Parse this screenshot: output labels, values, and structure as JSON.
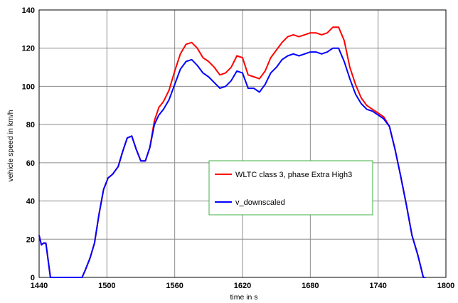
{
  "chart_data": {
    "type": "line",
    "title": "",
    "xlabel": "time in s",
    "ylabel": "vehicle speed in km/h",
    "xlim": [
      1440,
      1800
    ],
    "ylim": [
      0,
      140
    ],
    "xticks": [
      1440,
      1500,
      1560,
      1620,
      1680,
      1740,
      1800
    ],
    "yticks": [
      0,
      20,
      40,
      60,
      80,
      100,
      120,
      140
    ],
    "grid": true,
    "legend_position": "center-right",
    "series": [
      {
        "name": "WLTC class 3, phase Extra High3",
        "color": "#ff0000",
        "points": [
          [
            1440,
            22
          ],
          [
            1442,
            17
          ],
          [
            1444,
            18
          ],
          [
            1446,
            18
          ],
          [
            1448,
            9
          ],
          [
            1450,
            0
          ],
          [
            1460,
            0
          ],
          [
            1470,
            0
          ],
          [
            1478,
            0
          ],
          [
            1481,
            4
          ],
          [
            1485,
            10
          ],
          [
            1489,
            18
          ],
          [
            1493,
            33
          ],
          [
            1497,
            46
          ],
          [
            1501,
            52
          ],
          [
            1505,
            54
          ],
          [
            1510,
            58
          ],
          [
            1514,
            66
          ],
          [
            1518,
            73
          ],
          [
            1522,
            74
          ],
          [
            1526,
            67
          ],
          [
            1530,
            61
          ],
          [
            1534,
            61
          ],
          [
            1538,
            68
          ],
          [
            1542,
            82
          ],
          [
            1546,
            89
          ],
          [
            1550,
            92
          ],
          [
            1555,
            98
          ],
          [
            1560,
            108
          ],
          [
            1565,
            117
          ],
          [
            1570,
            122
          ],
          [
            1575,
            123
          ],
          [
            1580,
            120
          ],
          [
            1585,
            115
          ],
          [
            1590,
            113
          ],
          [
            1595,
            110
          ],
          [
            1600,
            106
          ],
          [
            1605,
            107
          ],
          [
            1610,
            110
          ],
          [
            1615,
            116
          ],
          [
            1620,
            115
          ],
          [
            1625,
            106
          ],
          [
            1630,
            105
          ],
          [
            1635,
            104
          ],
          [
            1640,
            108
          ],
          [
            1645,
            115
          ],
          [
            1650,
            119
          ],
          [
            1655,
            123
          ],
          [
            1660,
            126
          ],
          [
            1665,
            127
          ],
          [
            1670,
            126
          ],
          [
            1675,
            127
          ],
          [
            1680,
            128
          ],
          [
            1685,
            128
          ],
          [
            1690,
            127
          ],
          [
            1695,
            128
          ],
          [
            1700,
            131
          ],
          [
            1705,
            131
          ],
          [
            1710,
            124
          ],
          [
            1715,
            110
          ],
          [
            1720,
            101
          ],
          [
            1725,
            94
          ],
          [
            1730,
            90
          ],
          [
            1735,
            88
          ],
          [
            1740,
            86
          ],
          [
            1745,
            84
          ],
          [
            1750,
            79
          ],
          [
            1755,
            67
          ],
          [
            1760,
            53
          ],
          [
            1765,
            38
          ],
          [
            1770,
            22
          ],
          [
            1775,
            12
          ],
          [
            1778,
            5
          ],
          [
            1780,
            0
          ],
          [
            1782,
            0
          ]
        ]
      },
      {
        "name": "v_downscaled",
        "color": "#0000ff",
        "points": [
          [
            1440,
            22
          ],
          [
            1442,
            17
          ],
          [
            1444,
            18
          ],
          [
            1446,
            18
          ],
          [
            1448,
            9
          ],
          [
            1450,
            0
          ],
          [
            1460,
            0
          ],
          [
            1470,
            0
          ],
          [
            1478,
            0
          ],
          [
            1481,
            4
          ],
          [
            1485,
            10
          ],
          [
            1489,
            18
          ],
          [
            1493,
            33
          ],
          [
            1497,
            46
          ],
          [
            1501,
            52
          ],
          [
            1505,
            54
          ],
          [
            1510,
            58
          ],
          [
            1514,
            66
          ],
          [
            1518,
            73
          ],
          [
            1522,
            74
          ],
          [
            1526,
            67
          ],
          [
            1530,
            61
          ],
          [
            1534,
            61
          ],
          [
            1538,
            68
          ],
          [
            1542,
            80
          ],
          [
            1546,
            85
          ],
          [
            1550,
            88
          ],
          [
            1555,
            93
          ],
          [
            1560,
            101
          ],
          [
            1565,
            109
          ],
          [
            1570,
            113
          ],
          [
            1575,
            114
          ],
          [
            1580,
            111
          ],
          [
            1585,
            107
          ],
          [
            1590,
            105
          ],
          [
            1595,
            102
          ],
          [
            1600,
            99
          ],
          [
            1605,
            100
          ],
          [
            1610,
            103
          ],
          [
            1615,
            108
          ],
          [
            1620,
            107
          ],
          [
            1625,
            99
          ],
          [
            1630,
            99
          ],
          [
            1635,
            97
          ],
          [
            1640,
            101
          ],
          [
            1645,
            107
          ],
          [
            1650,
            110
          ],
          [
            1655,
            114
          ],
          [
            1660,
            116
          ],
          [
            1665,
            117
          ],
          [
            1670,
            116
          ],
          [
            1675,
            117
          ],
          [
            1680,
            118
          ],
          [
            1685,
            118
          ],
          [
            1690,
            117
          ],
          [
            1695,
            118
          ],
          [
            1700,
            120
          ],
          [
            1705,
            120
          ],
          [
            1710,
            113
          ],
          [
            1715,
            104
          ],
          [
            1720,
            96
          ],
          [
            1725,
            91
          ],
          [
            1730,
            88
          ],
          [
            1735,
            87
          ],
          [
            1740,
            85
          ],
          [
            1745,
            83
          ],
          [
            1750,
            79
          ],
          [
            1755,
            67
          ],
          [
            1760,
            53
          ],
          [
            1765,
            38
          ],
          [
            1770,
            22
          ],
          [
            1775,
            12
          ],
          [
            1778,
            5
          ],
          [
            1780,
            0
          ],
          [
            1782,
            0
          ]
        ]
      }
    ]
  }
}
